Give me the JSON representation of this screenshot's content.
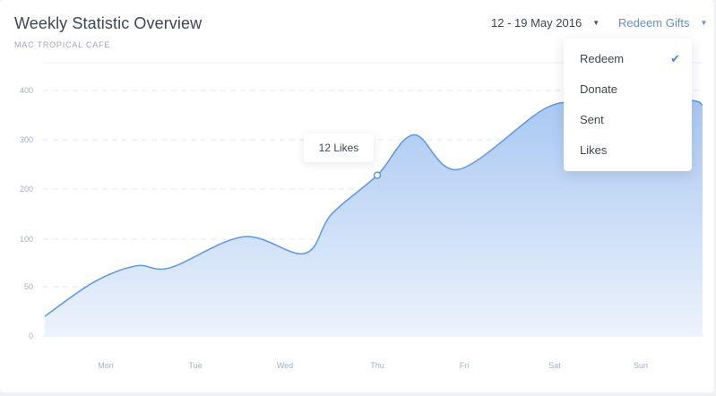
{
  "header": {
    "title": "Weekly Statistic Overview",
    "subtitle": "MAC TROPICAL CAFE",
    "date_range": "12 - 19 May 2016",
    "redeem_label": "Redeem Gifts"
  },
  "menu": {
    "items": [
      {
        "label": "Redeem",
        "checked": true
      },
      {
        "label": "Donate",
        "checked": false
      },
      {
        "label": "Sent",
        "checked": false
      },
      {
        "label": "Likes",
        "checked": false
      }
    ],
    "check_icon": "check-icon"
  },
  "tooltip": {
    "text": "12 Likes"
  },
  "colors": {
    "accent": "#5b8fdc",
    "line": "#5d97e6",
    "fill_top": "#a9c8f2",
    "fill_bottom": "#edf3fc"
  },
  "chart_data": {
    "type": "area",
    "title": "Weekly Statistic Overview",
    "x_tick_labels": [
      "Mon",
      "Tue",
      "Wed",
      "Thu",
      "Fri",
      "Sat",
      "Sun"
    ],
    "y_tick_labels": [
      "0",
      "50",
      "100",
      "200",
      "300",
      "400"
    ],
    "grid": true,
    "legend": "none",
    "series": [
      {
        "values": [
          {
            "x": "Sun-Mon",
            "y": 20
          },
          {
            "x": "Mon",
            "y": 55
          },
          {
            "x": "Mon-Tue",
            "y": 72
          },
          {
            "x": "Tue",
            "y": 70
          },
          {
            "x": "Tue-Wed",
            "y": 105
          },
          {
            "x": "Wed",
            "y": 85
          },
          {
            "x": "Wed-Thu",
            "y": 150
          },
          {
            "x": "Thu",
            "y": 228
          },
          {
            "x": "Thu-Fri",
            "y": 310
          },
          {
            "x": "Fri",
            "y": 240
          },
          {
            "x": "Fri-Sat",
            "y": 365
          },
          {
            "x": "Sat",
            "y": 370
          },
          {
            "x": "Sat-Sun",
            "y": 380
          },
          {
            "x": "Sun",
            "y": 370
          }
        ]
      }
    ],
    "highlighted_point": {
      "x": "Thu",
      "label": "12 Likes"
    }
  }
}
